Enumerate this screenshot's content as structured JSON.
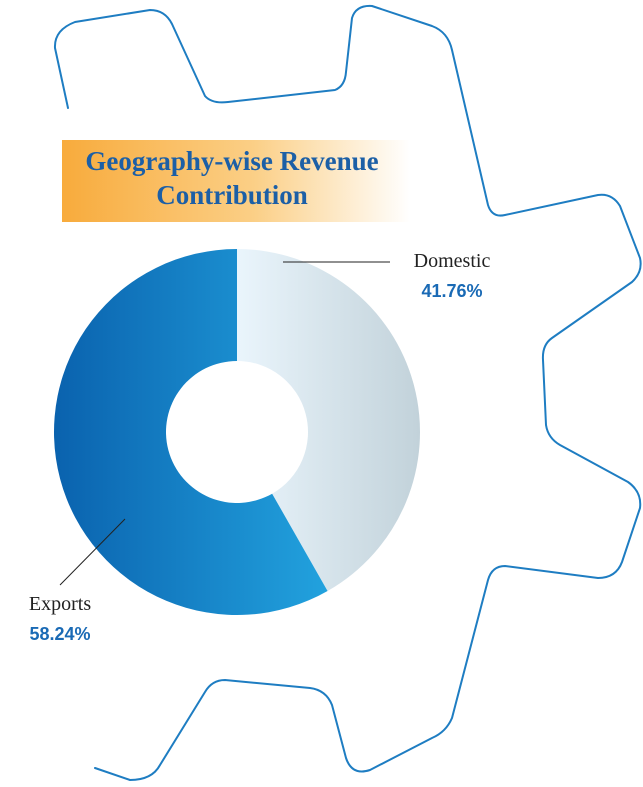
{
  "chart_data": {
    "type": "pie",
    "title": "Geography-wise Revenue Contribution",
    "categories": [
      "Domestic",
      "Exports"
    ],
    "values": [
      41.76,
      58.24
    ],
    "value_labels": [
      "41.76%",
      "58.24%"
    ],
    "colors": [
      [
        "#eaf5fc",
        "#c2d2da"
      ],
      [
        "#0a62ae",
        "#22a2de"
      ]
    ]
  }
}
